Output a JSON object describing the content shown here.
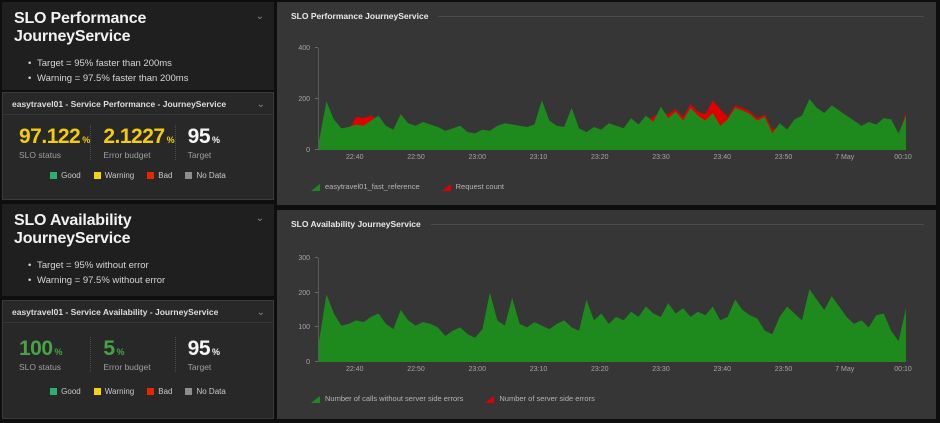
{
  "panels": {
    "performance_note": {
      "title": "SLO Performance JourneyService",
      "bullets": [
        "Target = 95% faster than 200ms",
        "Warning = 97.5% faster than 200ms"
      ]
    },
    "availability_note": {
      "title": "SLO Availability JourneyService",
      "bullets": [
        "Target = 95% without error",
        "Warning = 97.5% without error"
      ]
    }
  },
  "tiles": {
    "performance": {
      "header": "easytravel01 - Service Performance - JourneyService",
      "metrics": [
        {
          "value": "97.122",
          "unit": "%",
          "label": "SLO status",
          "color": "#f3cd0c"
        },
        {
          "value": "2.1227",
          "unit": "%",
          "label": "Error budget",
          "color": "#f3cd0c"
        },
        {
          "value": "95",
          "unit": "%",
          "label": "Target",
          "color": "#f5f5f5"
        }
      ]
    },
    "availability": {
      "header": "easytravel01 - Service Availability - JourneyService",
      "metrics": [
        {
          "value": "100",
          "unit": "%",
          "label": "SLO status",
          "color": "#46a347"
        },
        {
          "value": "5",
          "unit": "%",
          "label": "Error budget",
          "color": "#46a347"
        },
        {
          "value": "95",
          "unit": "%",
          "label": "Target",
          "color": "#f5f5f5"
        }
      ]
    }
  },
  "status_legend": [
    {
      "label": "Good",
      "color": "#2ab06f"
    },
    {
      "label": "Warning",
      "color": "#f5d30f"
    },
    {
      "label": "Bad",
      "color": "#e62600"
    },
    {
      "label": "No Data",
      "color": "#8d8d8d"
    }
  ],
  "chart_data": [
    {
      "type": "area",
      "title": "SLO Performance JourneyService",
      "ylim": [
        0,
        400
      ],
      "yticks": [
        0,
        200,
        400
      ],
      "grid": false,
      "legend_position": "bottom-left",
      "xticks": [
        {
          "label": "22:40",
          "f": 0.0625
        },
        {
          "label": "22:50",
          "f": 0.1667
        },
        {
          "label": "23:00",
          "f": 0.2708
        },
        {
          "label": "23:10",
          "f": 0.375
        },
        {
          "label": "23:20",
          "f": 0.4792
        },
        {
          "label": "23:30",
          "f": 0.5833
        },
        {
          "label": "23:40",
          "f": 0.6875
        },
        {
          "label": "23:50",
          "f": 0.7917
        },
        {
          "label": "7 May",
          "f": 0.8958
        },
        {
          "label": "00:10",
          "f": 0.995
        }
      ],
      "series": [
        {
          "name": "easytravel01_fast_reference",
          "color": "#1e8a1e",
          "values": [
            35,
            190,
            120,
            85,
            90,
            100,
            95,
            115,
            135,
            95,
            80,
            140,
            105,
            95,
            110,
            100,
            90,
            75,
            85,
            95,
            70,
            65,
            80,
            75,
            95,
            105,
            100,
            95,
            90,
            100,
            195,
            115,
            95,
            90,
            165,
            85,
            70,
            90,
            80,
            105,
            95,
            85,
            125,
            100,
            135,
            110,
            170,
            125,
            150,
            115,
            165,
            135,
            115,
            145,
            95,
            120,
            165,
            155,
            140,
            115,
            130,
            65,
            105,
            80,
            120,
            135,
            200,
            165,
            145,
            175,
            155,
            135,
            115,
            95,
            110,
            100,
            125,
            120,
            65,
            135
          ]
        },
        {
          "name": "Request count",
          "color": "#e00000",
          "values": [
            30,
            170,
            105,
            75,
            80,
            130,
            125,
            135,
            120,
            80,
            70,
            125,
            90,
            80,
            95,
            85,
            75,
            60,
            70,
            80,
            55,
            50,
            65,
            60,
            80,
            90,
            85,
            80,
            75,
            85,
            175,
            100,
            80,
            75,
            145,
            70,
            55,
            75,
            65,
            90,
            80,
            70,
            105,
            85,
            115,
            130,
            150,
            140,
            160,
            130,
            180,
            150,
            140,
            195,
            160,
            130,
            175,
            165,
            150,
            125,
            140,
            80,
            90,
            70,
            105,
            120,
            180,
            150,
            130,
            160,
            140,
            120,
            100,
            80,
            95,
            85,
            110,
            105,
            55,
            148
          ]
        }
      ]
    },
    {
      "type": "area",
      "title": "SLO Availability JourneyService",
      "ylim": [
        0,
        300
      ],
      "yticks": [
        0,
        100,
        200,
        300
      ],
      "grid": false,
      "legend_position": "bottom-left",
      "xticks": [
        {
          "label": "22:40",
          "f": 0.0625
        },
        {
          "label": "22:50",
          "f": 0.1667
        },
        {
          "label": "23:00",
          "f": 0.2708
        },
        {
          "label": "23:10",
          "f": 0.375
        },
        {
          "label": "23:20",
          "f": 0.4792
        },
        {
          "label": "23:30",
          "f": 0.5833
        },
        {
          "label": "23:40",
          "f": 0.6875
        },
        {
          "label": "23:50",
          "f": 0.7917
        },
        {
          "label": "7 May",
          "f": 0.8958
        },
        {
          "label": "00:10",
          "f": 0.995
        }
      ],
      "series": [
        {
          "name": "Number of calls without server side errors",
          "color": "#1e8a1e",
          "values": [
            60,
            195,
            140,
            105,
            110,
            120,
            115,
            130,
            140,
            110,
            95,
            150,
            120,
            105,
            115,
            110,
            100,
            75,
            90,
            100,
            80,
            70,
            95,
            200,
            120,
            105,
            185,
            110,
            100,
            115,
            105,
            95,
            110,
            120,
            100,
            90,
            180,
            120,
            140,
            110,
            130,
            120,
            145,
            130,
            160,
            140,
            130,
            170,
            140,
            155,
            130,
            145,
            135,
            160,
            120,
            130,
            180,
            150,
            135,
            125,
            90,
            80,
            130,
            160,
            140,
            120,
            210,
            180,
            150,
            190,
            160,
            130,
            110,
            120,
            100,
            135,
            140,
            90,
            60,
            155
          ]
        },
        {
          "name": "Number of server side errors",
          "color": "#e00000",
          "values": []
        }
      ]
    }
  ],
  "icons": {
    "chevron_down": "⌄"
  }
}
